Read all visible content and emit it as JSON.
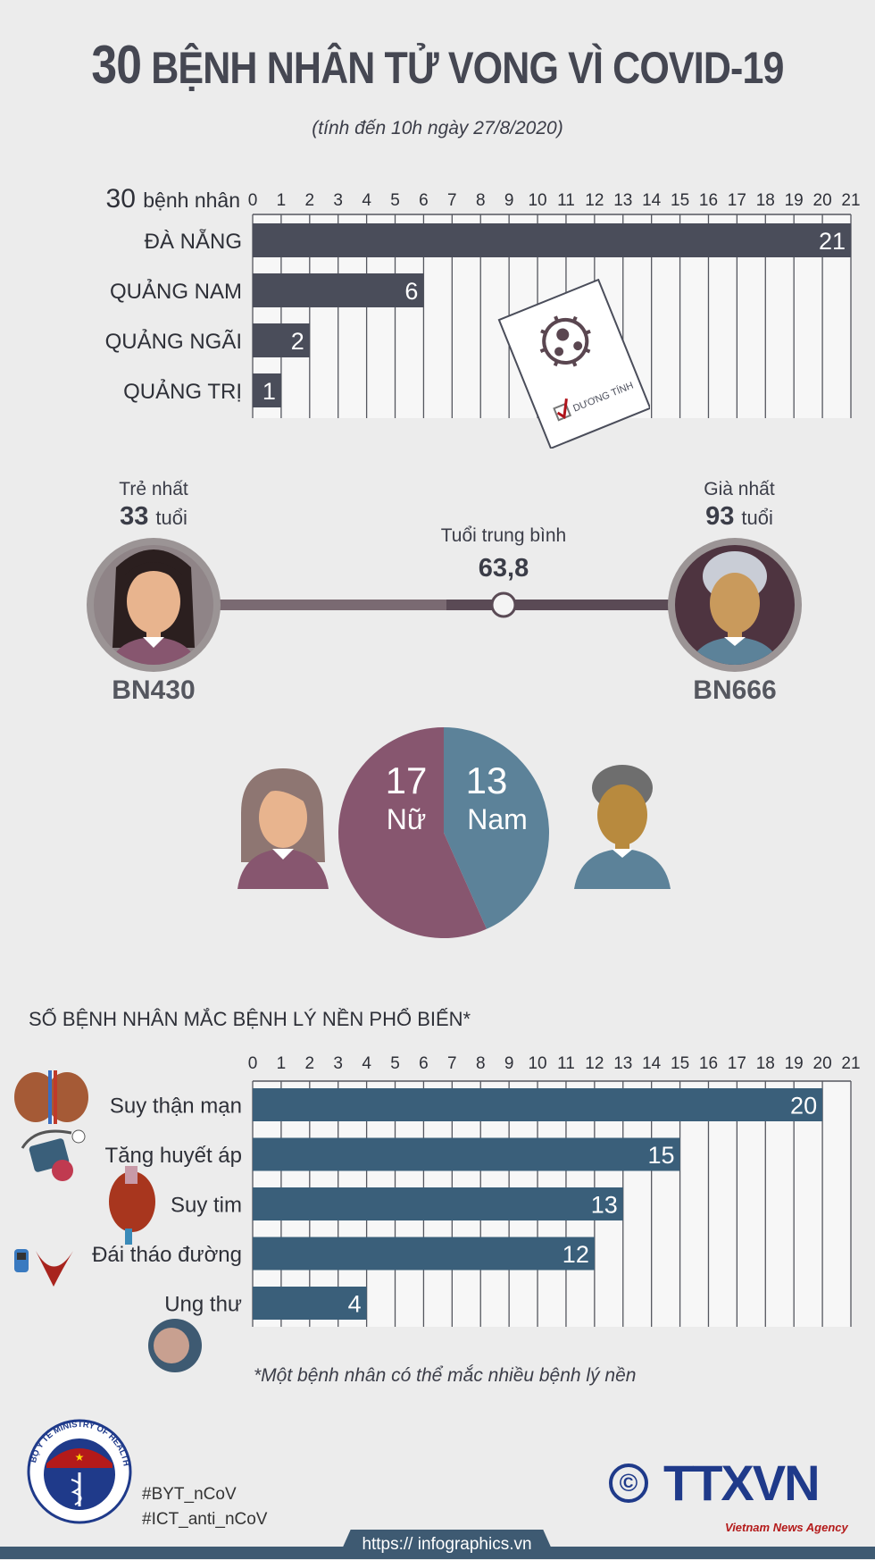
{
  "header": {
    "title_number": "30",
    "title_text": "BỆNH NHÂN TỬ VONG VÌ COVID-19",
    "subtitle": "(tính đến 10h ngày 27/8/2020)"
  },
  "colors": {
    "background": "#ececec",
    "province_bar": "#4a4d5a",
    "disease_bar": "#3a5f7a",
    "female": "#87566f",
    "male": "#5c8299"
  },
  "age": {
    "youngest_label": "Trẻ nhất",
    "youngest_age": "33",
    "oldest_label": "Già nhất",
    "oldest_age": "93",
    "unit": "tuổi",
    "average_label": "Tuổi trung bình",
    "average_value": "63,8",
    "youngest_patient": "BN430",
    "oldest_patient": "BN666"
  },
  "test_card": {
    "label": "DƯƠNG TÍNH",
    "icon": "virus-icon"
  },
  "section2": {
    "title": "SỐ BỆNH NHÂN MẮC BỆNH LÝ NỀN PHỔ BIẾN*",
    "footnote": "*Một bệnh nhân có thể mắc nhiều bệnh lý nền",
    "icons": [
      "kidney-icon",
      "blood-pressure-icon",
      "heart-icon",
      "diabetes-icon",
      "cancer-cell-icon"
    ]
  },
  "footer": {
    "ministry_logo_text": "BỘ Y TẾ MINISTRY OF HEALTH",
    "hashtag1": "#BYT_nCoV",
    "hashtag2": "#ICT_anti_nCoV",
    "copyright": "©",
    "agency_logo": "TTXVN",
    "agency_name": "Vietnam News Agency",
    "url": "https:// infographics.vn"
  },
  "chart_data": [
    {
      "type": "bar",
      "orientation": "horizontal",
      "axis_title": "30 bệnh nhân",
      "categories": [
        "ĐÀ NẴNG",
        "QUẢNG NAM",
        "QUẢNG NGÃI",
        "QUẢNG TRỊ"
      ],
      "values": [
        21,
        6,
        2,
        1
      ],
      "xlim": [
        0,
        21
      ],
      "ticks": [
        0,
        1,
        2,
        3,
        4,
        5,
        6,
        7,
        8,
        9,
        10,
        11,
        12,
        13,
        14,
        15,
        16,
        17,
        18,
        19,
        20,
        21
      ],
      "grid": true
    },
    {
      "type": "pie",
      "slices": [
        {
          "label": "Nữ",
          "value": 17
        },
        {
          "label": "Nam",
          "value": 13
        }
      ]
    },
    {
      "type": "bar",
      "orientation": "horizontal",
      "categories": [
        "Suy thận mạn",
        "Tăng huyết áp",
        "Suy tim",
        "Đái tháo đường",
        "Ung thư"
      ],
      "values": [
        20,
        15,
        13,
        12,
        4
      ],
      "xlim": [
        0,
        21
      ],
      "ticks": [
        0,
        1,
        2,
        3,
        4,
        5,
        6,
        7,
        8,
        9,
        10,
        11,
        12,
        13,
        14,
        15,
        16,
        17,
        18,
        19,
        20,
        21
      ],
      "grid": true
    }
  ]
}
